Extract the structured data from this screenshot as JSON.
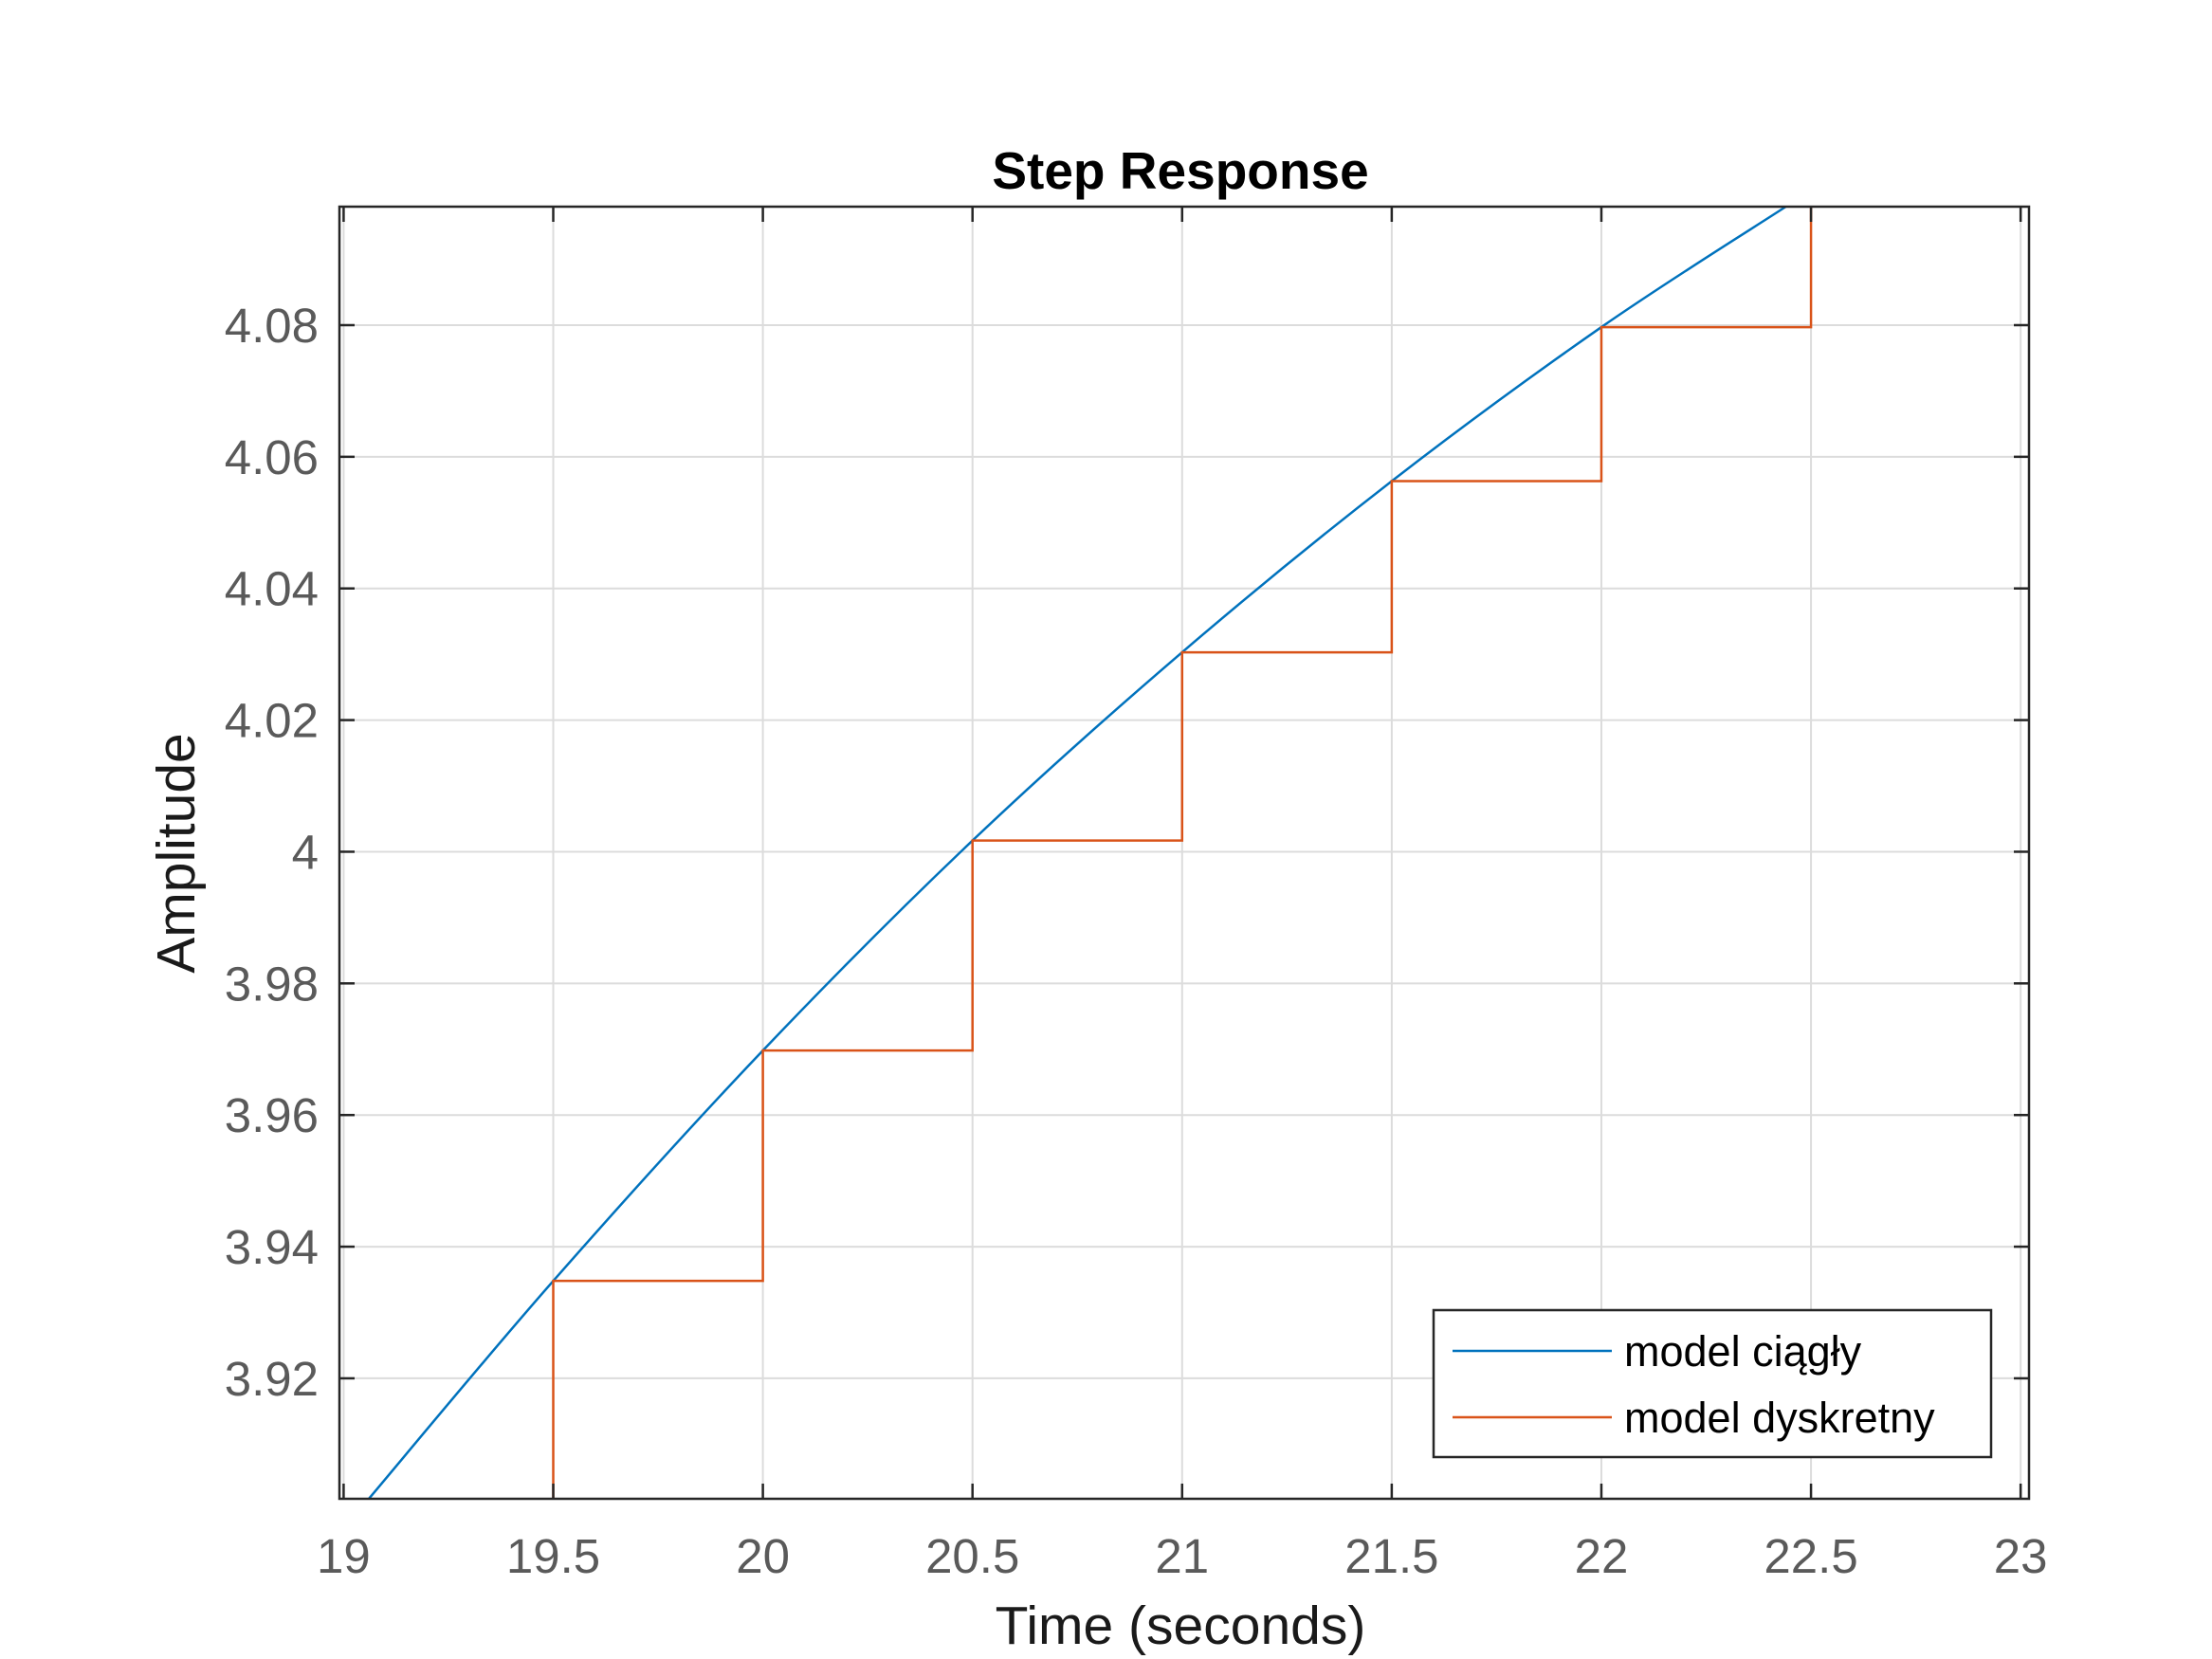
{
  "chart_data": {
    "type": "line",
    "title": "Step Response",
    "xlabel": "Time (seconds)",
    "ylabel": "Amplitude",
    "xlim": [
      18.99,
      23.02
    ],
    "ylim": [
      3.9017,
      4.098
    ],
    "xticks": [
      19,
      19.5,
      20,
      20.5,
      21,
      21.5,
      22,
      22.5,
      23
    ],
    "xtick_labels": [
      "19",
      "19.5",
      "20",
      "20.5",
      "21",
      "21.5",
      "22",
      "22.5",
      "23"
    ],
    "yticks": [
      3.92,
      3.94,
      3.96,
      3.98,
      4.0,
      4.02,
      4.04,
      4.06,
      4.08
    ],
    "ytick_labels": [
      "3.92",
      "3.94",
      "3.96",
      "3.98",
      "4",
      "4.02",
      "4.04",
      "4.06",
      "4.08"
    ],
    "grid": true,
    "legend_position": "bottom-right",
    "series": [
      {
        "name": "model ciągły",
        "kind": "continuous",
        "color": "#0072BD",
        "x": [
          19.06,
          19.5,
          20.0,
          20.5,
          21.0,
          21.5,
          22.0,
          22.44
        ],
        "y": [
          3.9017,
          3.9348,
          3.9698,
          4.0017,
          4.0303,
          4.0563,
          4.0797,
          4.098
        ]
      },
      {
        "name": "model dyskretny",
        "kind": "step",
        "color": "#D95319",
        "x": [
          19.5,
          19.5,
          20.0,
          20.5,
          21.0,
          21.5,
          22.0,
          22.5
        ],
        "y": [
          3.9017,
          3.9348,
          3.9698,
          4.0017,
          4.0303,
          4.0563,
          4.0797,
          4.098
        ]
      }
    ]
  }
}
